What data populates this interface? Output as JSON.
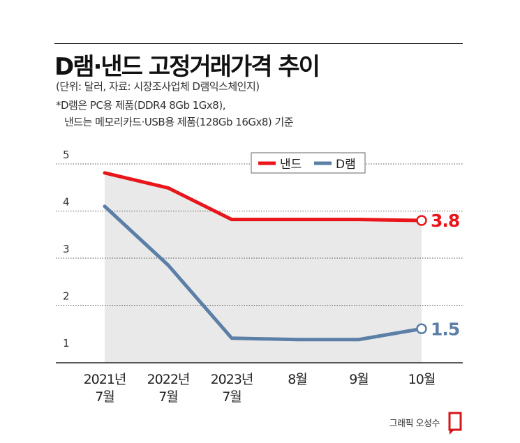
{
  "title": "D램·낸드 고정거래가격 추이",
  "source": "(단위: 달러, 자료: 시장조사업체 D램익스체인지)",
  "note_line1": "*D램은 PC용 제품(DDR4 8Gb 1Gx8),",
  "note_line2": "낸드는 메모리카드·USB용 제품(128Gb 16Gx8) 기준",
  "credit": "그래픽 오성수",
  "colors": {
    "nand": "#e8161b",
    "dram": "#5b7fa6",
    "shade": "#e9e9e9"
  },
  "chart_data": {
    "type": "line",
    "categories": [
      [
        "2021년",
        "7월"
      ],
      [
        "2022년",
        "7월"
      ],
      [
        "2023년",
        "7월"
      ],
      [
        "8월"
      ],
      [
        "9월"
      ],
      [
        "10월"
      ]
    ],
    "ylim": [
      1,
      5
    ],
    "yticks": [
      "1",
      "2",
      "3",
      "4",
      "5"
    ],
    "grid": true,
    "legend": "top-right",
    "series": [
      {
        "name": "낸드",
        "values": [
          4.81,
          4.49,
          3.82,
          3.82,
          3.82,
          3.8
        ],
        "end_label": "3.8"
      },
      {
        "name": "D램",
        "values": [
          4.1,
          2.85,
          1.3,
          1.27,
          1.27,
          1.5
        ],
        "end_label": "1.5"
      }
    ]
  }
}
